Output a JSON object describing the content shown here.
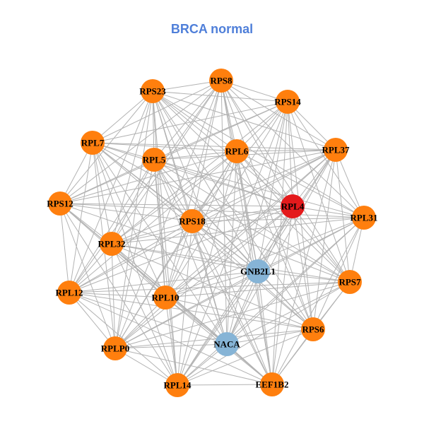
{
  "title": "BRCA normal",
  "colors": {
    "title": "#4f7fd9",
    "edge": "#b3b3b3",
    "orange_node": "#ff7f0e",
    "red_node": "#e41a1c",
    "blue_node": "#86b4d6"
  },
  "nodes": [
    {
      "id": "RPS8",
      "color": "orange"
    },
    {
      "id": "RPS23",
      "color": "orange"
    },
    {
      "id": "RPS14",
      "color": "orange"
    },
    {
      "id": "RPL7",
      "color": "orange"
    },
    {
      "id": "RPL5",
      "color": "orange"
    },
    {
      "id": "RPL6",
      "color": "orange"
    },
    {
      "id": "RPL37",
      "color": "orange"
    },
    {
      "id": "RPS12",
      "color": "orange"
    },
    {
      "id": "RPL4",
      "color": "red"
    },
    {
      "id": "RPL31",
      "color": "orange"
    },
    {
      "id": "RPS18",
      "color": "orange"
    },
    {
      "id": "RPL32",
      "color": "orange"
    },
    {
      "id": "GNB2L1",
      "color": "blue"
    },
    {
      "id": "RPS7",
      "color": "orange"
    },
    {
      "id": "RPL12",
      "color": "orange"
    },
    {
      "id": "RPL10",
      "color": "orange"
    },
    {
      "id": "RPS6",
      "color": "orange"
    },
    {
      "id": "NACA",
      "color": "blue"
    },
    {
      "id": "RPLP0",
      "color": "orange"
    },
    {
      "id": "RPL14",
      "color": "orange"
    },
    {
      "id": "EEF1B2",
      "color": "orange"
    }
  ]
}
